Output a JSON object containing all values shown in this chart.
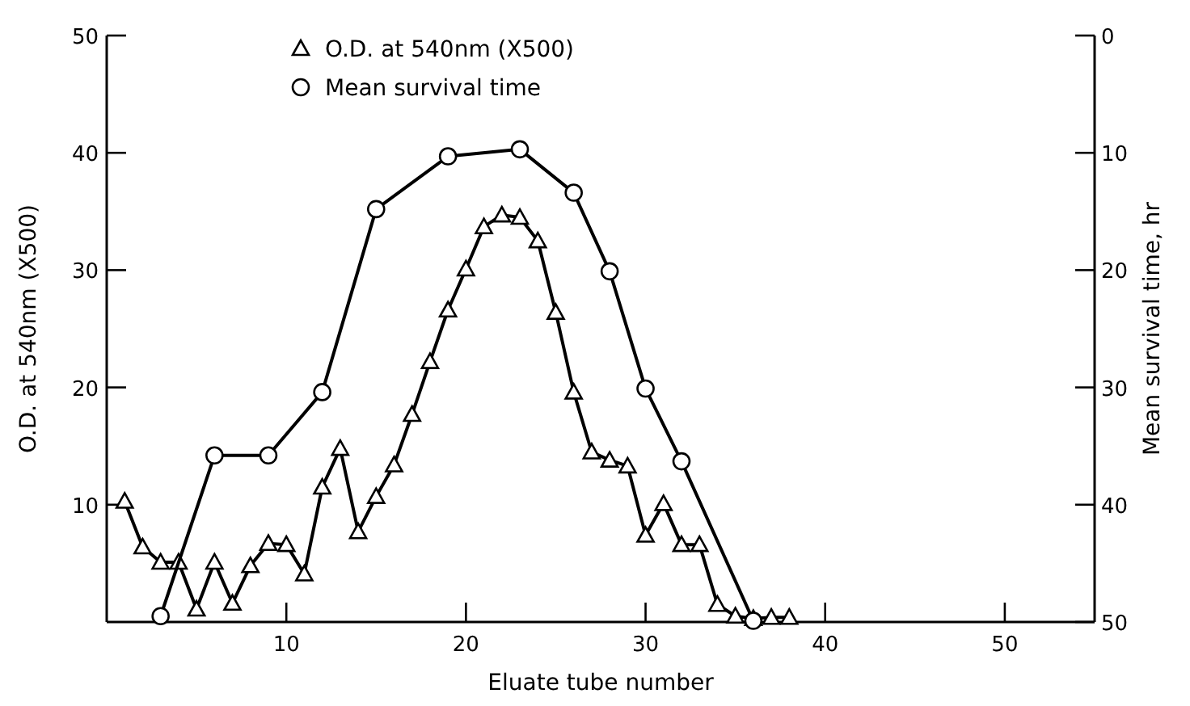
{
  "chart_data": {
    "type": "line",
    "xlabel": "Eluate tube number",
    "ylabel": "O.D. at 540nm  (X500)",
    "y2label": "Mean survival time,  hr",
    "xlim": [
      0,
      55
    ],
    "xticks": [
      10,
      20,
      30,
      40,
      50
    ],
    "ylim": [
      0,
      50
    ],
    "yticks": [
      10,
      20,
      30,
      40,
      50
    ],
    "y2lim": [
      50,
      0
    ],
    "y2ticks": [
      0,
      10,
      20,
      30,
      40,
      50
    ],
    "grid": false,
    "legend": "top left",
    "line_style": "solid",
    "series": [
      {
        "name": "O.D. at 540nm  (X500)",
        "color": "#000000",
        "marker": "triangle",
        "x": [
          1,
          2,
          3,
          4,
          5,
          6,
          7,
          8,
          9,
          10,
          11,
          12,
          13,
          14,
          15,
          16,
          17,
          18,
          19,
          20,
          21,
          22,
          23,
          24,
          25,
          26,
          27,
          28,
          29,
          30,
          31,
          32,
          33,
          34,
          35,
          36,
          37,
          38
        ],
        "values": [
          10.3,
          6.4,
          5.1,
          5.1,
          1.1,
          5.1,
          1.6,
          4.8,
          6.7,
          6.6,
          4.1,
          11.5,
          14.8,
          7.7,
          10.7,
          13.4,
          17.7,
          22.2,
          26.6,
          30.1,
          33.7,
          34.7,
          34.5,
          32.5,
          26.4,
          19.6,
          14.5,
          13.8,
          13.3,
          7.4,
          10.1,
          6.6,
          6.6,
          1.5,
          0.5,
          0.3,
          0.4,
          0.4
        ]
      },
      {
        "name": "Mean survival time",
        "color": "#000000",
        "marker": "circle",
        "axis": "y2",
        "x": [
          3,
          6,
          9,
          12,
          15,
          19,
          23,
          26,
          28,
          30,
          32,
          36
        ],
        "values": [
          49.5,
          35.8,
          35.8,
          30.4,
          14.8,
          10.3,
          9.7,
          13.4,
          20.1,
          30.1,
          36.3,
          49.9
        ]
      }
    ]
  }
}
